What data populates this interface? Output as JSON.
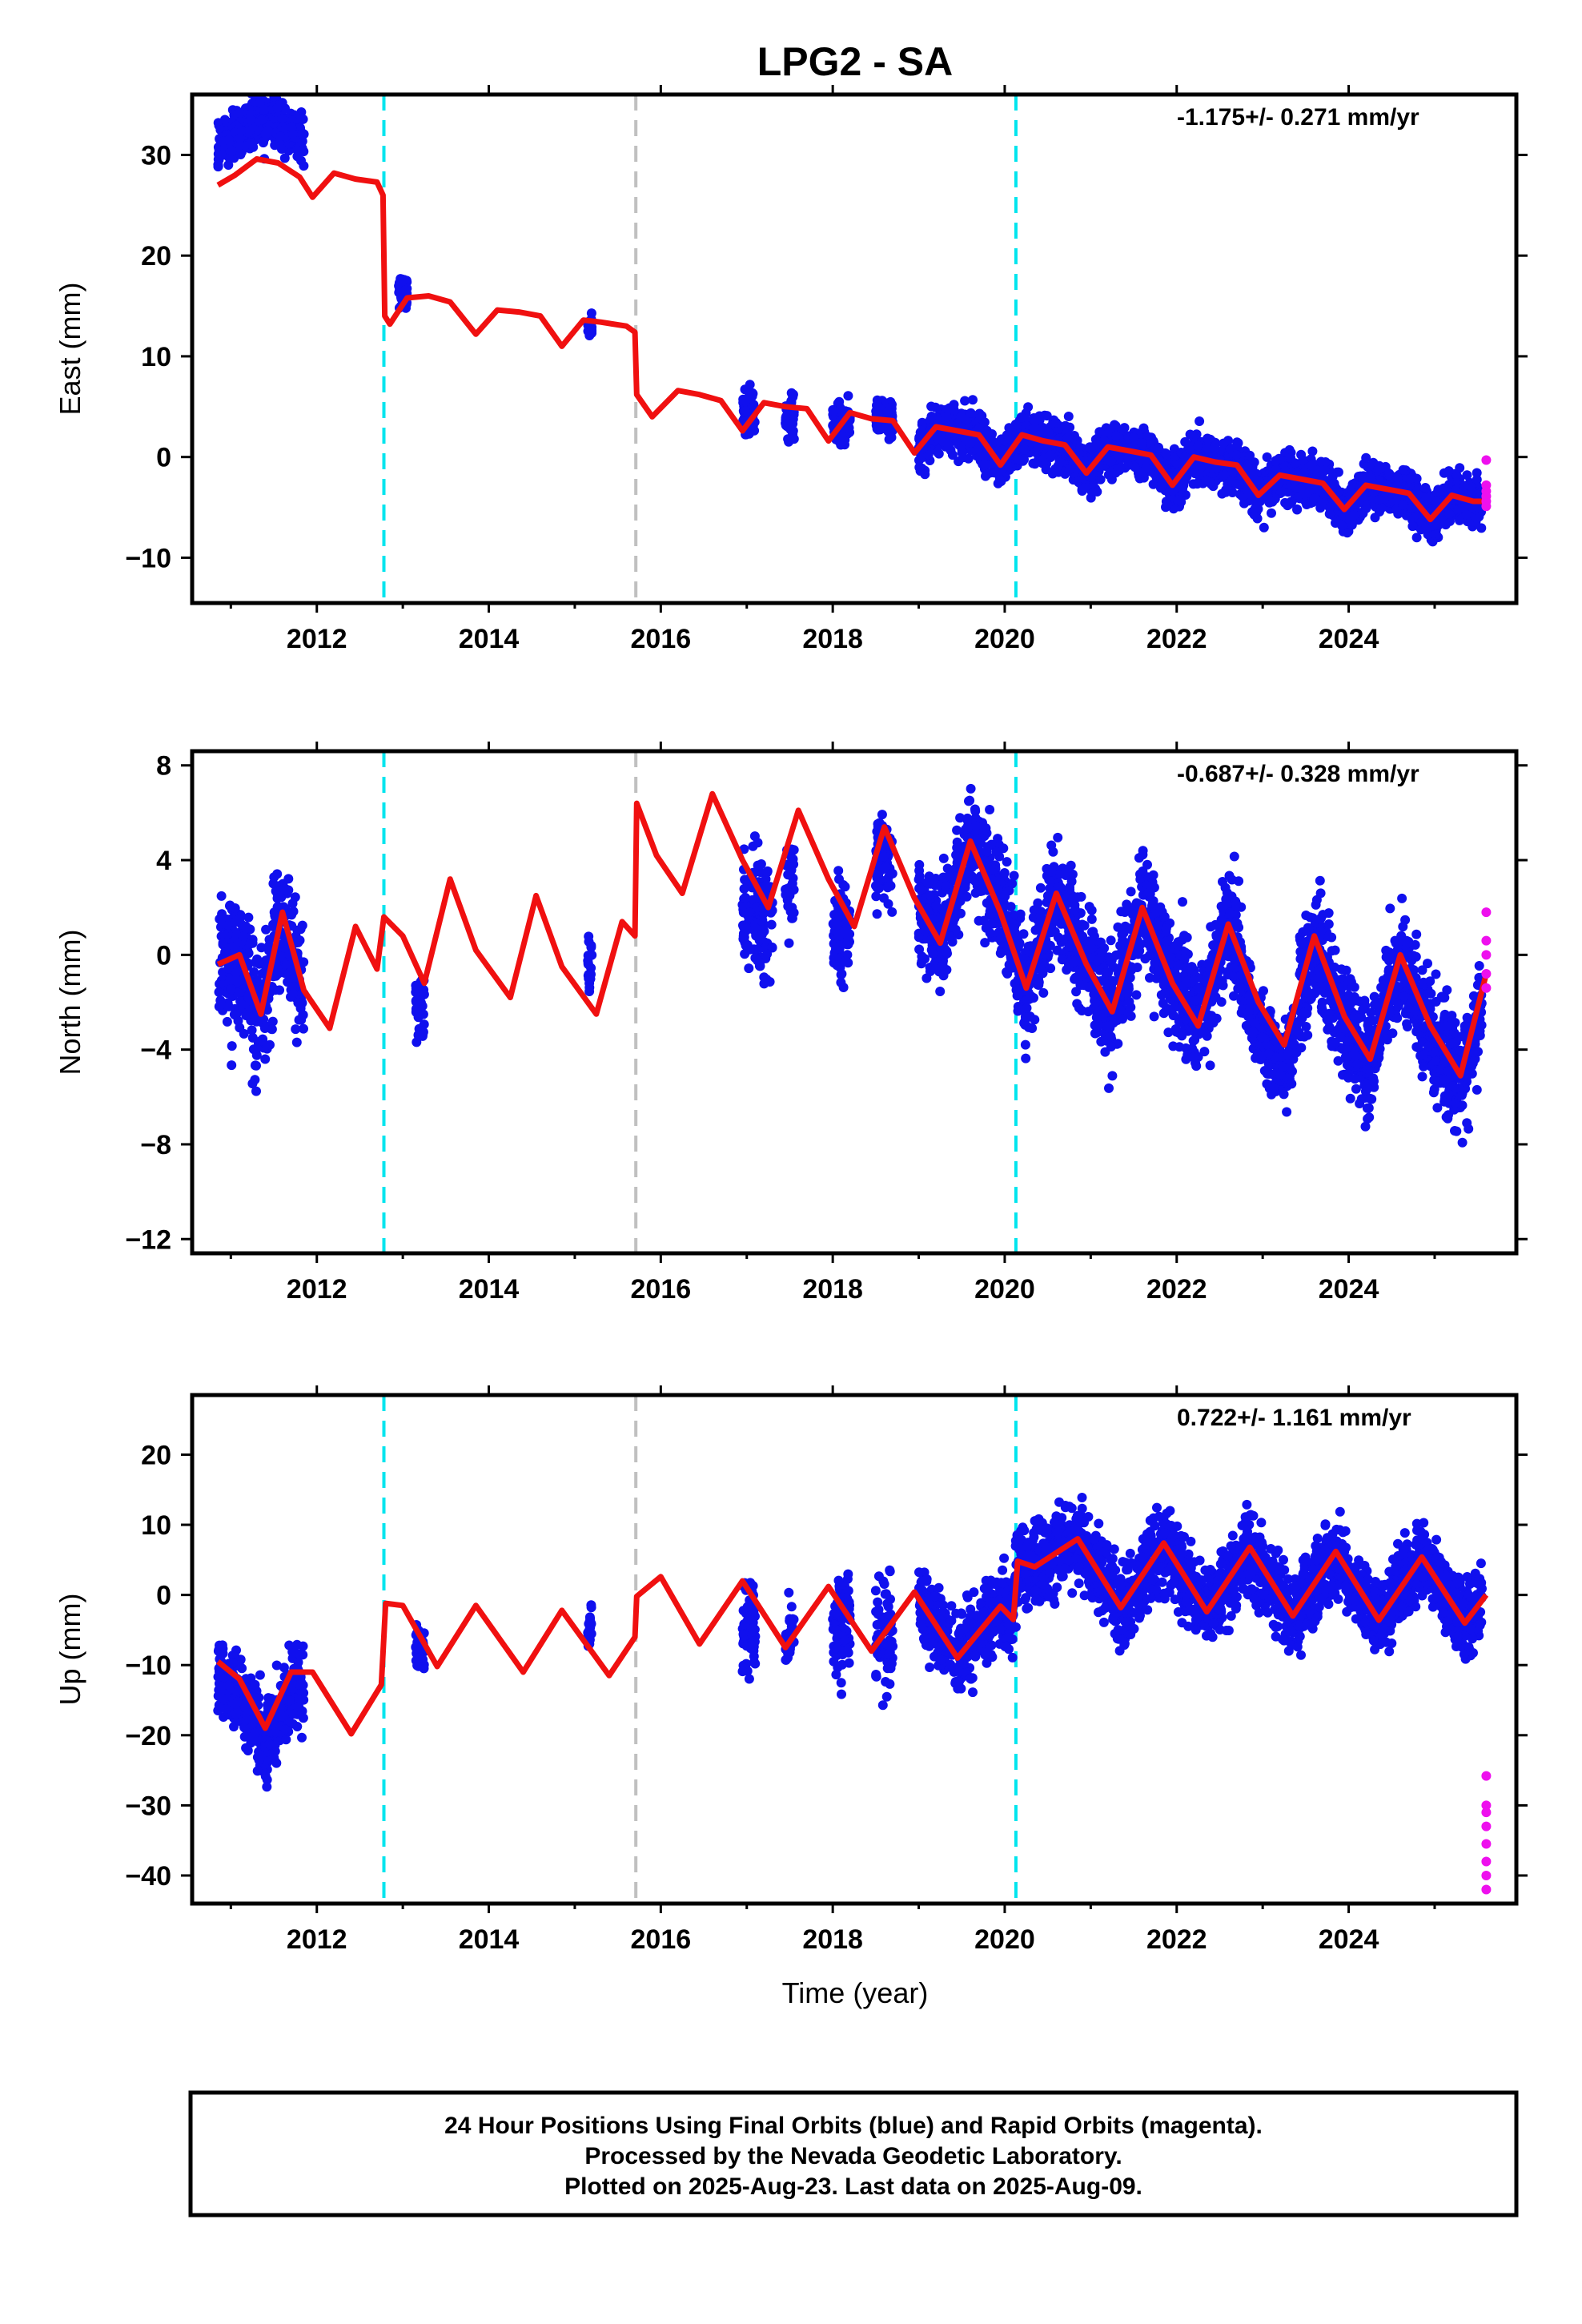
{
  "chart_data": {
    "type": "scatter",
    "title": "LPG2 - SA",
    "xlabel": "Time (year)",
    "xlim": [
      2010.55,
      2025.95
    ],
    "x_ticks": [
      "2012",
      "2014",
      "2016",
      "2018",
      "2020",
      "2022",
      "2024"
    ],
    "x_tick_values": [
      2012,
      2014,
      2016,
      2018,
      2020,
      2022,
      2024
    ],
    "grid": false,
    "series_legend": {
      "final_orbits_color": "#1010ee",
      "rapid_orbits_color": "#ee10ee",
      "model_color": "#f01010"
    },
    "event_lines": [
      {
        "x": 2012.78,
        "color": "#00e5ee",
        "style": "dashed"
      },
      {
        "x": 2015.71,
        "color": "#c0c0c0",
        "style": "dashed"
      },
      {
        "x": 2020.13,
        "color": "#00e5ee",
        "style": "dashed"
      }
    ],
    "panels": [
      {
        "key": "east",
        "ylabel": "East (mm)",
        "ylim": [
          -14.5,
          36
        ],
        "y_ticks": [
          "30",
          "20",
          "10",
          "0",
          "−10"
        ],
        "y_tick_values": [
          30,
          20,
          10,
          0,
          -10
        ],
        "rate": "-1.175+/- 0.271 mm/yr",
        "model_points": [
          [
            2010.85,
            27
          ],
          [
            2011.05,
            28
          ],
          [
            2011.3,
            29.6
          ],
          [
            2011.55,
            29.2
          ],
          [
            2011.8,
            27.8
          ],
          [
            2011.95,
            25.8
          ],
          [
            2012.2,
            28.2
          ],
          [
            2012.45,
            27.6
          ],
          [
            2012.7,
            27.3
          ],
          [
            2012.77,
            26
          ],
          [
            2012.79,
            14
          ],
          [
            2012.85,
            13.2
          ],
          [
            2013.05,
            15.8
          ],
          [
            2013.3,
            16
          ],
          [
            2013.55,
            15.4
          ],
          [
            2013.85,
            12.2
          ],
          [
            2014.1,
            14.6
          ],
          [
            2014.35,
            14.4
          ],
          [
            2014.6,
            14
          ],
          [
            2014.85,
            11
          ],
          [
            2015.1,
            13.6
          ],
          [
            2015.3,
            13.4
          ],
          [
            2015.6,
            13
          ],
          [
            2015.7,
            12.4
          ],
          [
            2015.72,
            6.2
          ],
          [
            2015.9,
            4
          ],
          [
            2016.2,
            6.6
          ],
          [
            2016.45,
            6.2
          ],
          [
            2016.7,
            5.6
          ],
          [
            2016.95,
            2.6
          ],
          [
            2017.2,
            5.4
          ],
          [
            2017.45,
            5
          ],
          [
            2017.7,
            4.8
          ],
          [
            2017.95,
            1.6
          ],
          [
            2018.2,
            4.4
          ],
          [
            2018.45,
            3.8
          ],
          [
            2018.7,
            3.6
          ],
          [
            2018.95,
            0.4
          ],
          [
            2019.2,
            3
          ],
          [
            2019.45,
            2.6
          ],
          [
            2019.7,
            2.2
          ],
          [
            2019.95,
            -0.8
          ],
          [
            2020.2,
            2.2
          ],
          [
            2020.45,
            1.6
          ],
          [
            2020.7,
            1.2
          ],
          [
            2020.95,
            -1.6
          ],
          [
            2021.2,
            1
          ],
          [
            2021.45,
            0.6
          ],
          [
            2021.7,
            0.2
          ],
          [
            2021.95,
            -2.8
          ],
          [
            2022.2,
            0
          ],
          [
            2022.45,
            -0.5
          ],
          [
            2022.7,
            -0.8
          ],
          [
            2022.95,
            -3.8
          ],
          [
            2023.2,
            -1.8
          ],
          [
            2023.45,
            -2.2
          ],
          [
            2023.7,
            -2.6
          ],
          [
            2023.95,
            -5.2
          ],
          [
            2024.2,
            -2.8
          ],
          [
            2024.45,
            -3.2
          ],
          [
            2024.7,
            -3.6
          ],
          [
            2024.95,
            -6.2
          ],
          [
            2025.2,
            -3.8
          ],
          [
            2025.45,
            -4.4
          ],
          [
            2025.6,
            -4.4
          ]
        ],
        "data_segments": [
          [
            2010.85,
            2011.85,
            26.5,
            3.2
          ],
          [
            2012.95,
            2013.05,
            16.5,
            2
          ],
          [
            2015.15,
            2015.2,
            13,
            1.5
          ],
          [
            2016.95,
            2017.1,
            4.5,
            3
          ],
          [
            2017.45,
            2017.55,
            4,
            2.5
          ],
          [
            2018.0,
            2018.2,
            3.5,
            2.5
          ],
          [
            2018.5,
            2018.7,
            3.8,
            2.5
          ],
          [
            2019.0,
            2025.55,
            0,
            3
          ]
        ],
        "rapid_points": [
          [
            2025.6,
            -0.3
          ],
          [
            2025.6,
            -2.8
          ],
          [
            2025.6,
            -3.4
          ],
          [
            2025.6,
            -3.9
          ],
          [
            2025.6,
            -4.4
          ],
          [
            2025.6,
            -4.9
          ]
        ]
      },
      {
        "key": "north",
        "ylabel": "North (mm)",
        "ylim": [
          -12.6,
          8.6
        ],
        "y_ticks": [
          "8",
          "4",
          "0",
          "−4",
          "−8",
          "−12"
        ],
        "y_tick_values": [
          8,
          4,
          0,
          -4,
          -8,
          -12
        ],
        "rate": "-0.687+/- 0.328 mm/yr",
        "model_points": [
          [
            2010.85,
            -0.4
          ],
          [
            2011.1,
            0
          ],
          [
            2011.35,
            -2.5
          ],
          [
            2011.6,
            1.8
          ],
          [
            2011.85,
            -1.5
          ],
          [
            2012.15,
            -3.1
          ],
          [
            2012.45,
            1.2
          ],
          [
            2012.7,
            -0.6
          ],
          [
            2012.78,
            1.6
          ],
          [
            2013.0,
            0.8
          ],
          [
            2013.25,
            -1.2
          ],
          [
            2013.55,
            3.2
          ],
          [
            2013.85,
            0.2
          ],
          [
            2014.25,
            -1.8
          ],
          [
            2014.55,
            2.5
          ],
          [
            2014.85,
            -0.5
          ],
          [
            2015.25,
            -2.5
          ],
          [
            2015.55,
            1.4
          ],
          [
            2015.7,
            0.8
          ],
          [
            2015.72,
            6.4
          ],
          [
            2015.95,
            4.2
          ],
          [
            2016.25,
            2.6
          ],
          [
            2016.6,
            6.8
          ],
          [
            2016.95,
            4
          ],
          [
            2017.25,
            2
          ],
          [
            2017.6,
            6.1
          ],
          [
            2017.95,
            3.2
          ],
          [
            2018.25,
            1.2
          ],
          [
            2018.6,
            5.4
          ],
          [
            2018.95,
            2.4
          ],
          [
            2019.25,
            0.5
          ],
          [
            2019.6,
            4.8
          ],
          [
            2019.95,
            1.8
          ],
          [
            2020.25,
            -1.4
          ],
          [
            2020.6,
            2.6
          ],
          [
            2020.95,
            -0.4
          ],
          [
            2021.25,
            -2.4
          ],
          [
            2021.6,
            2
          ],
          [
            2021.95,
            -1.2
          ],
          [
            2022.25,
            -3
          ],
          [
            2022.6,
            1.3
          ],
          [
            2022.95,
            -2
          ],
          [
            2023.25,
            -3.8
          ],
          [
            2023.6,
            0.8
          ],
          [
            2023.95,
            -2.6
          ],
          [
            2024.25,
            -4.4
          ],
          [
            2024.6,
            0
          ],
          [
            2024.95,
            -3
          ],
          [
            2025.3,
            -5.1
          ],
          [
            2025.6,
            -0.8
          ]
        ],
        "data_segments": [
          [
            2010.85,
            2011.85,
            -0.5,
            3.6
          ],
          [
            2013.15,
            2013.25,
            -2,
            2
          ],
          [
            2015.15,
            2015.2,
            -0.5,
            1.5
          ],
          [
            2016.95,
            2017.3,
            1.5,
            3
          ],
          [
            2017.45,
            2017.55,
            3,
            2.5
          ],
          [
            2018.0,
            2018.2,
            1,
            2.5
          ],
          [
            2018.5,
            2018.7,
            4,
            2.5
          ],
          [
            2019.0,
            2022.75,
            1,
            3
          ],
          [
            2022.75,
            2023.4,
            -7.5,
            2
          ],
          [
            2023.4,
            2025.55,
            -2,
            3
          ]
        ],
        "rapid_points": [
          [
            2025.6,
            1.8
          ],
          [
            2025.6,
            0.6
          ],
          [
            2025.6,
            0
          ],
          [
            2025.6,
            -0.8
          ],
          [
            2025.6,
            -1.4
          ]
        ]
      },
      {
        "key": "up",
        "ylabel": "Up (mm)",
        "ylim": [
          -44,
          28.5
        ],
        "y_ticks": [
          "20",
          "10",
          "0",
          "−10",
          "−20",
          "−30",
          "−40"
        ],
        "y_tick_values": [
          20,
          10,
          0,
          -10,
          -20,
          -30,
          -40
        ],
        "rate": "0.722+/- 1.161 mm/yr",
        "model_points": [
          [
            2010.85,
            -9.5
          ],
          [
            2011.1,
            -12
          ],
          [
            2011.4,
            -19
          ],
          [
            2011.7,
            -11
          ],
          [
            2011.95,
            -11
          ],
          [
            2012.4,
            -19.8
          ],
          [
            2012.75,
            -12.8
          ],
          [
            2012.8,
            -1.2
          ],
          [
            2013.0,
            -1.5
          ],
          [
            2013.4,
            -10.2
          ],
          [
            2013.85,
            -1.5
          ],
          [
            2014.4,
            -11
          ],
          [
            2014.85,
            -2.2
          ],
          [
            2015.4,
            -11.5
          ],
          [
            2015.7,
            -6
          ],
          [
            2015.72,
            -0.2
          ],
          [
            2016.0,
            2.6
          ],
          [
            2016.45,
            -7
          ],
          [
            2016.95,
            2
          ],
          [
            2017.45,
            -7.5
          ],
          [
            2017.95,
            1.2
          ],
          [
            2018.45,
            -8
          ],
          [
            2018.95,
            0.4
          ],
          [
            2019.45,
            -9
          ],
          [
            2019.95,
            -1.6
          ],
          [
            2020.1,
            -3.5
          ],
          [
            2020.15,
            4.8
          ],
          [
            2020.35,
            4
          ],
          [
            2020.85,
            8
          ],
          [
            2021.35,
            -1.8
          ],
          [
            2021.85,
            7.4
          ],
          [
            2022.35,
            -2.4
          ],
          [
            2022.85,
            6.8
          ],
          [
            2023.35,
            -3
          ],
          [
            2023.85,
            6.2
          ],
          [
            2024.35,
            -3.6
          ],
          [
            2024.85,
            5.4
          ],
          [
            2025.35,
            -4
          ],
          [
            2025.6,
            0
          ]
        ],
        "data_segments": [
          [
            2010.85,
            2011.85,
            -14,
            7
          ],
          [
            2013.15,
            2013.25,
            -8,
            5
          ],
          [
            2015.15,
            2015.2,
            -4,
            5
          ],
          [
            2016.95,
            2017.1,
            -4,
            9
          ],
          [
            2017.45,
            2017.55,
            -6,
            6
          ],
          [
            2018.0,
            2018.2,
            -4,
            9
          ],
          [
            2018.5,
            2018.7,
            -6,
            9
          ],
          [
            2019.0,
            2025.55,
            0,
            7
          ]
        ],
        "rapid_points": [
          [
            2025.6,
            -25.8
          ],
          [
            2025.6,
            -30
          ],
          [
            2025.6,
            -31
          ],
          [
            2025.6,
            -33
          ],
          [
            2025.6,
            -35.5
          ],
          [
            2025.6,
            -38
          ],
          [
            2025.6,
            -40
          ],
          [
            2025.6,
            -42
          ]
        ]
      }
    ]
  },
  "footer": {
    "line1": "24 Hour Positions Using Final Orbits (blue) and Rapid Orbits (magenta).",
    "line2": "Processed by the Nevada Geodetic Laboratory.",
    "line3": "Plotted on 2025-Aug-23. Last data on 2025-Aug-09."
  }
}
